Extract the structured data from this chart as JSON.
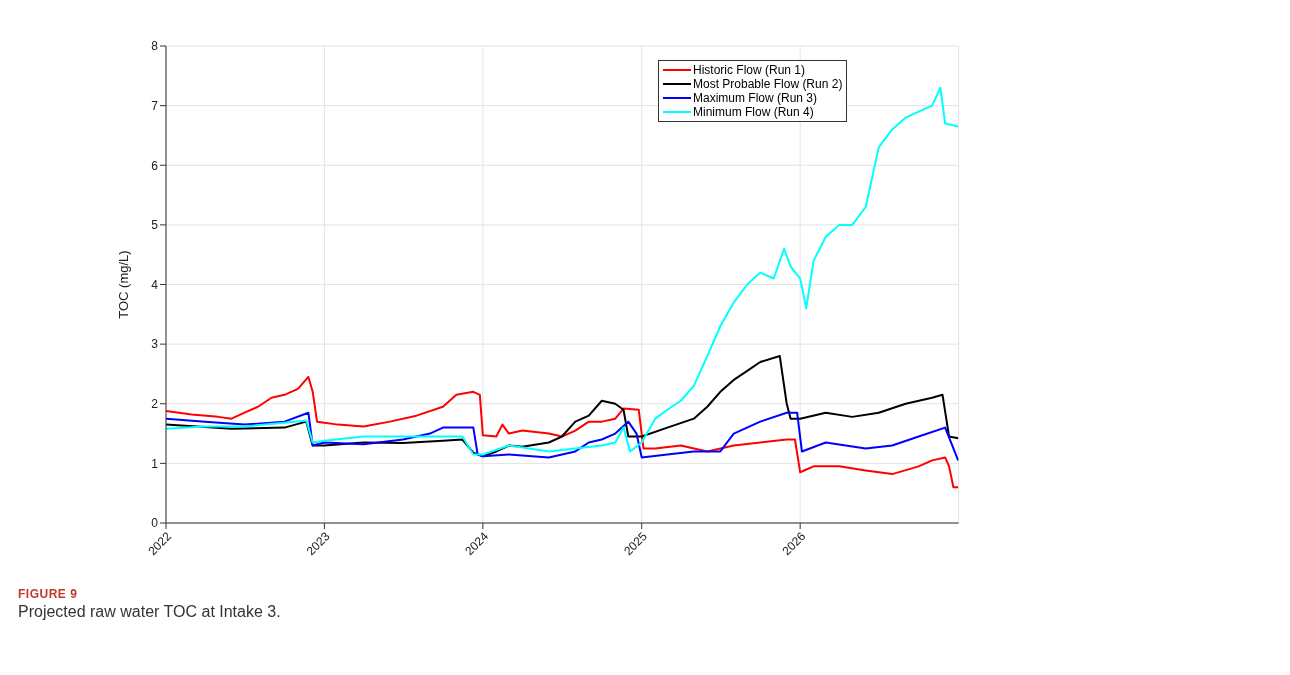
{
  "chart_data": {
    "type": "line",
    "ylabel": "TOC (mg/L)",
    "xlim": [
      "2022-01-01",
      "2027-01-01"
    ],
    "xticks": [
      "2022",
      "2023",
      "2024",
      "2025",
      "2026"
    ],
    "ylim": [
      0,
      8
    ],
    "yticks": [
      0,
      1,
      2,
      3,
      4,
      5,
      6,
      7,
      8
    ],
    "grid": true,
    "legend": "top right",
    "annotations": [
      "FIGURE 9",
      "Projected raw water TOC at Intake 3."
    ],
    "series": [
      {
        "name": "Historic Flow (Run 1)",
        "color": "#ff0000",
        "x": [
          "2022-01-01",
          "2022-03-01",
          "2022-05-01",
          "2022-06-01",
          "2022-07-01",
          "2022-08-01",
          "2022-09-01",
          "2022-10-01",
          "2022-11-01",
          "2022-11-25",
          "2022-12-05",
          "2022-12-15",
          "2023-01-01",
          "2023-02-01",
          "2023-04-01",
          "2023-06-01",
          "2023-08-01",
          "2023-10-01",
          "2023-11-01",
          "2023-12-10",
          "2023-12-25",
          "2024-01-01",
          "2024-02-01",
          "2024-02-15",
          "2024-03-01",
          "2024-04-01",
          "2024-06-01",
          "2024-07-01",
          "2024-08-01",
          "2024-09-01",
          "2024-10-01",
          "2024-11-01",
          "2024-11-20",
          "2024-12-25",
          "2025-01-05",
          "2025-02-01",
          "2025-04-01",
          "2025-06-01",
          "2025-08-01",
          "2025-10-01",
          "2025-12-01",
          "2025-12-20",
          "2026-01-01",
          "2026-01-10",
          "2026-02-01",
          "2026-04-01",
          "2026-06-01",
          "2026-08-01",
          "2026-10-01",
          "2026-11-01",
          "2026-12-01",
          "2026-12-10",
          "2026-12-20",
          "2026-12-31"
        ],
        "values": [
          1.88,
          1.82,
          1.78,
          1.75,
          1.85,
          1.95,
          2.1,
          2.15,
          2.25,
          2.45,
          2.2,
          1.7,
          1.68,
          1.65,
          1.62,
          1.7,
          1.8,
          1.95,
          2.15,
          2.2,
          2.15,
          1.47,
          1.45,
          1.65,
          1.5,
          1.55,
          1.5,
          1.45,
          1.55,
          1.7,
          1.7,
          1.75,
          1.92,
          1.9,
          1.25,
          1.25,
          1.3,
          1.2,
          1.3,
          1.35,
          1.4,
          1.4,
          0.85,
          0.88,
          0.95,
          0.95,
          0.88,
          0.82,
          0.95,
          1.05,
          1.1,
          0.95,
          0.6,
          0.6
        ]
      },
      {
        "name": "Most Probable Flow (Run 2)",
        "color": "#000000",
        "x": [
          "2022-01-01",
          "2022-06-01",
          "2022-10-01",
          "2022-11-20",
          "2022-12-05",
          "2023-01-01",
          "2023-04-01",
          "2023-07-01",
          "2023-10-01",
          "2023-11-15",
          "2023-12-10",
          "2024-01-01",
          "2024-02-01",
          "2024-03-01",
          "2024-04-01",
          "2024-06-01",
          "2024-07-01",
          "2024-08-01",
          "2024-09-01",
          "2024-10-01",
          "2024-11-01",
          "2024-11-20",
          "2024-12-01",
          "2025-01-01",
          "2025-03-01",
          "2025-05-01",
          "2025-06-01",
          "2025-07-01",
          "2025-08-01",
          "2025-09-01",
          "2025-10-01",
          "2025-11-15",
          "2025-12-01",
          "2025-12-10",
          "2026-01-01",
          "2026-03-01",
          "2026-05-01",
          "2026-07-01",
          "2026-09-01",
          "2026-11-01",
          "2026-11-25",
          "2026-12-10",
          "2026-12-31"
        ],
        "values": [
          1.65,
          1.58,
          1.6,
          1.7,
          1.3,
          1.3,
          1.35,
          1.34,
          1.38,
          1.4,
          1.18,
          1.12,
          1.2,
          1.3,
          1.28,
          1.35,
          1.45,
          1.7,
          1.8,
          2.05,
          2.0,
          1.9,
          1.45,
          1.45,
          1.6,
          1.75,
          1.95,
          2.2,
          2.4,
          2.55,
          2.7,
          2.8,
          2.0,
          1.75,
          1.75,
          1.85,
          1.78,
          1.85,
          2.0,
          2.1,
          2.15,
          1.45,
          1.42
        ]
      },
      {
        "name": "Maximum Flow (Run 3)",
        "color": "#0000ff",
        "x": [
          "2022-01-01",
          "2022-04-01",
          "2022-07-01",
          "2022-10-01",
          "2022-11-25",
          "2022-12-05",
          "2023-01-01",
          "2023-04-01",
          "2023-07-01",
          "2023-09-01",
          "2023-10-01",
          "2023-12-10",
          "2023-12-20",
          "2024-01-01",
          "2024-03-01",
          "2024-06-01",
          "2024-08-01",
          "2024-09-01",
          "2024-10-01",
          "2024-11-01",
          "2024-12-01",
          "2024-12-20",
          "2025-01-01",
          "2025-03-01",
          "2025-05-01",
          "2025-07-01",
          "2025-08-01",
          "2025-10-01",
          "2025-12-01",
          "2025-12-25",
          "2026-01-05",
          "2026-03-01",
          "2026-06-01",
          "2026-08-01",
          "2026-10-01",
          "2026-12-01",
          "2026-12-31"
        ],
        "values": [
          1.75,
          1.7,
          1.65,
          1.7,
          1.85,
          1.3,
          1.35,
          1.32,
          1.4,
          1.5,
          1.6,
          1.6,
          1.15,
          1.12,
          1.15,
          1.1,
          1.2,
          1.35,
          1.4,
          1.5,
          1.7,
          1.5,
          1.1,
          1.15,
          1.2,
          1.2,
          1.5,
          1.7,
          1.85,
          1.85,
          1.2,
          1.35,
          1.25,
          1.3,
          1.45,
          1.6,
          1.05
        ]
      },
      {
        "name": "Minimum Flow (Run 4)",
        "color": "#00ffff",
        "x": [
          "2022-01-01",
          "2022-04-01",
          "2022-07-01",
          "2022-10-01",
          "2022-11-20",
          "2022-12-05",
          "2023-01-01",
          "2023-04-01",
          "2023-07-01",
          "2023-10-01",
          "2023-11-15",
          "2023-12-10",
          "2024-01-01",
          "2024-03-01",
          "2024-06-01",
          "2024-08-01",
          "2024-10-01",
          "2024-11-01",
          "2024-11-20",
          "2024-12-05",
          "2025-01-01",
          "2025-02-01",
          "2025-03-01",
          "2025-04-01",
          "2025-05-01",
          "2025-06-01",
          "2025-07-01",
          "2025-08-01",
          "2025-09-01",
          "2025-10-01",
          "2025-11-01",
          "2025-11-25",
          "2025-12-10",
          "2026-01-01",
          "2026-01-15",
          "2026-02-01",
          "2026-03-01",
          "2026-04-01",
          "2026-05-01",
          "2026-06-01",
          "2026-07-01",
          "2026-08-01",
          "2026-09-01",
          "2026-10-01",
          "2026-11-01",
          "2026-11-20",
          "2026-12-01",
          "2026-12-31"
        ],
        "values": [
          1.58,
          1.62,
          1.62,
          1.68,
          1.72,
          1.35,
          1.38,
          1.45,
          1.45,
          1.45,
          1.45,
          1.15,
          1.15,
          1.3,
          1.2,
          1.25,
          1.3,
          1.35,
          1.6,
          1.2,
          1.35,
          1.75,
          1.9,
          2.05,
          2.3,
          2.8,
          3.3,
          3.7,
          4.0,
          4.2,
          4.1,
          4.6,
          4.3,
          4.1,
          3.6,
          4.4,
          4.8,
          5.0,
          5.0,
          5.3,
          6.3,
          6.6,
          6.8,
          6.9,
          7.0,
          7.3,
          6.7,
          6.65
        ]
      }
    ]
  }
}
